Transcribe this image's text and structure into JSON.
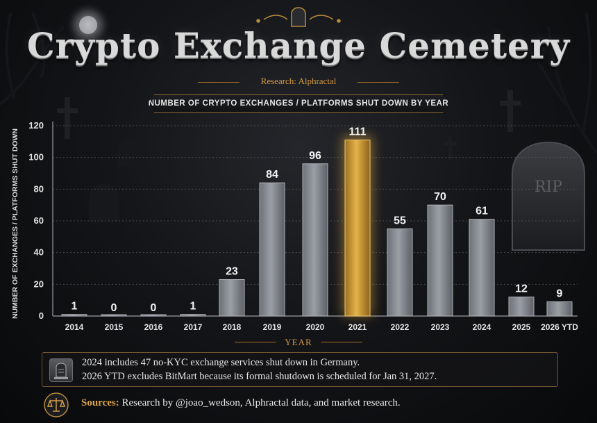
{
  "title": "Crypto Exchange Cemetery",
  "subtitle": "Research: Alphractal",
  "banner": "NUMBER OF CRYPTO EXCHANGES / PLATFORMS SHUT DOWN BY YEAR",
  "colors": {
    "bar": "#8d9198",
    "bar_highlight": "#d8a637",
    "accent": "#d39a44",
    "background": "#0b0c0e"
  },
  "chart_data": {
    "type": "bar",
    "title": "NUMBER OF CRYPTO EXCHANGES / PLATFORMS SHUT DOWN BY YEAR",
    "xlabel": "YEAR",
    "ylabel": "NUMBER OF EXCHANGES / PLATFORMS SHUT DOWN",
    "categories": [
      "2014",
      "2015",
      "2016",
      "2017",
      "2018",
      "2019",
      "2020",
      "2021",
      "2022",
      "2023",
      "2024",
      "2025",
      "2026 YTD"
    ],
    "values": [
      1,
      0,
      0,
      1,
      23,
      84,
      96,
      111,
      55,
      70,
      61,
      12,
      9
    ],
    "highlight": "2021",
    "ylim": [
      0,
      120
    ],
    "yticks": [
      0,
      20,
      40,
      60,
      80,
      100,
      120
    ],
    "grid": true,
    "legend": "none"
  },
  "notes": {
    "line1": "2024 includes 47 no-KYC exchange services shut down in Germany.",
    "line2": "2026 YTD excludes BitMart because its formal shutdown is scheduled for Jan 31, 2027.",
    "icon": "tombstone-icon"
  },
  "sources": {
    "label": "Sources:",
    "text": "Research by @joao_wedson, Alphractal data, and market research.",
    "icon": "scales-icon"
  },
  "decor": {
    "tombstone_text": "RIP"
  }
}
